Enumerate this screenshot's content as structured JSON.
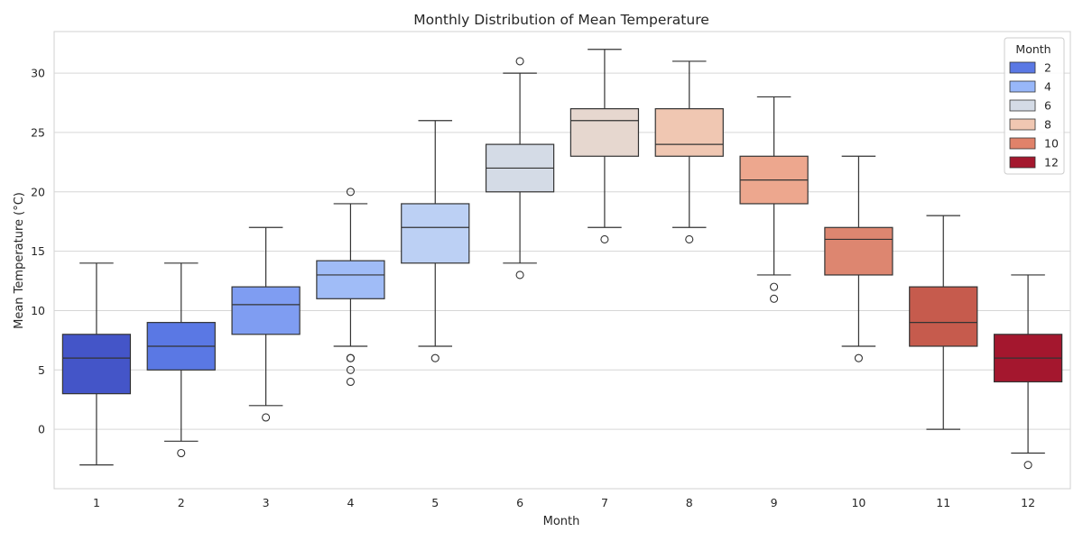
{
  "chart_data": {
    "type": "box",
    "title": "Monthly Distribution of Mean Temperature",
    "xlabel": "Month",
    "ylabel": "Mean Temperature (°C)",
    "categories": [
      "1",
      "2",
      "3",
      "4",
      "5",
      "6",
      "7",
      "8",
      "9",
      "10",
      "11",
      "12"
    ],
    "ylim": [
      -5,
      33.5
    ],
    "yticks": [
      0,
      5,
      10,
      15,
      20,
      25,
      30
    ],
    "grid": true,
    "legend": {
      "title": "Month",
      "placement": "top-right",
      "entries": [
        {
          "label": "2",
          "color": "#5a78e4"
        },
        {
          "label": "4",
          "color": "#98b7f9"
        },
        {
          "label": "6",
          "color": "#d4dbe6"
        },
        {
          "label": "8",
          "color": "#f0c7b2"
        },
        {
          "label": "10",
          "color": "#e0826a"
        },
        {
          "label": "12",
          "color": "#a4182e"
        }
      ]
    },
    "boxes": [
      {
        "month": "1",
        "whislo": -3,
        "q1": 3,
        "med": 6,
        "q3": 8,
        "whishi": 14,
        "fliers": [],
        "color": "#4455c8"
      },
      {
        "month": "2",
        "whislo": -1,
        "q1": 5,
        "med": 7,
        "q3": 9,
        "whishi": 14,
        "fliers": [
          -2
        ],
        "color": "#5a78e4"
      },
      {
        "month": "3",
        "whislo": 2,
        "q1": 8,
        "med": 10.5,
        "q3": 12,
        "whishi": 17,
        "fliers": [
          1
        ],
        "color": "#7f9df2"
      },
      {
        "month": "4",
        "whislo": 7,
        "q1": 11,
        "med": 13,
        "q3": 14.2,
        "whishi": 19,
        "fliers": [
          20,
          6,
          6,
          5,
          4
        ],
        "color": "#a0bcf7"
      },
      {
        "month": "5",
        "whislo": 7,
        "q1": 14,
        "med": 17,
        "q3": 19,
        "whishi": 26,
        "fliers": [
          6
        ],
        "color": "#bcd0f4"
      },
      {
        "month": "6",
        "whislo": 14,
        "q1": 20,
        "med": 22,
        "q3": 24,
        "whishi": 30,
        "fliers": [
          31,
          13
        ],
        "color": "#d4dbe6"
      },
      {
        "month": "7",
        "whislo": 17,
        "q1": 23,
        "med": 26,
        "q3": 27,
        "whishi": 32,
        "fliers": [
          16
        ],
        "color": "#e6d7cf"
      },
      {
        "month": "8",
        "whislo": 17,
        "q1": 23,
        "med": 24,
        "q3": 27,
        "whishi": 31,
        "fliers": [
          16
        ],
        "color": "#f0c7b2"
      },
      {
        "month": "9",
        "whislo": 13,
        "q1": 19,
        "med": 21,
        "q3": 23,
        "whishi": 28,
        "fliers": [
          12,
          11
        ],
        "color": "#eda78e"
      },
      {
        "month": "10",
        "whislo": 7,
        "q1": 13,
        "med": 16,
        "q3": 17,
        "whishi": 23,
        "fliers": [
          6
        ],
        "color": "#dd8670"
      },
      {
        "month": "11",
        "whislo": 0,
        "q1": 7,
        "med": 9,
        "q3": 12,
        "whishi": 18,
        "fliers": [],
        "color": "#c65b4d"
      },
      {
        "month": "12",
        "whislo": -2,
        "q1": 4,
        "med": 6,
        "q3": 8,
        "whishi": 13,
        "fliers": [
          -3
        ],
        "color": "#a4172e"
      }
    ]
  }
}
